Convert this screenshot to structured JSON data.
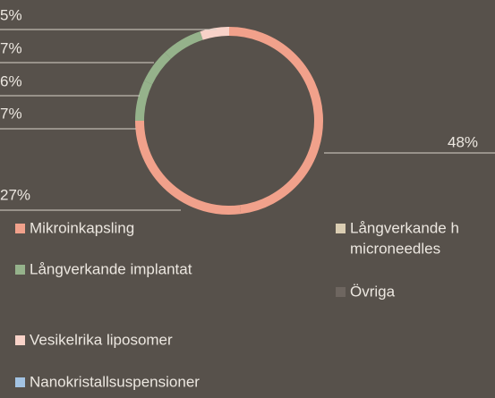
{
  "chart_data": {
    "type": "donut",
    "slices": [
      {
        "value": 48,
        "label": "48%",
        "color": "#f1a18b"
      },
      {
        "value": 27,
        "label": "27%",
        "color": "#f1a18b"
      },
      {
        "value": 7,
        "label": "7%",
        "color": "#95b28b"
      },
      {
        "value": 6,
        "label": "6%",
        "color": "#95b28b"
      },
      {
        "value": 7,
        "label": "7%",
        "color": "#95b28b"
      },
      {
        "value": 5,
        "label": "5%",
        "color": "#f8d2c8"
      }
    ],
    "legend": [
      {
        "lines": [
          "Mikroinkapsling"
        ],
        "color": "#f1a18b"
      },
      {
        "lines": [
          "Långverkande implantat"
        ],
        "color": "#95b28b"
      },
      {
        "lines": [
          "Vesikelrika liposomer"
        ],
        "color": "#f8d2c8"
      },
      {
        "lines": [
          "Nanokristallsuspensioner"
        ],
        "color": "#a3c3e3"
      },
      {
        "lines": [
          "Långverkande h",
          "microneedles"
        ],
        "color": "#dacdb2"
      },
      {
        "lines": [
          "Övriga"
        ],
        "color": "#6e6660"
      }
    ]
  }
}
